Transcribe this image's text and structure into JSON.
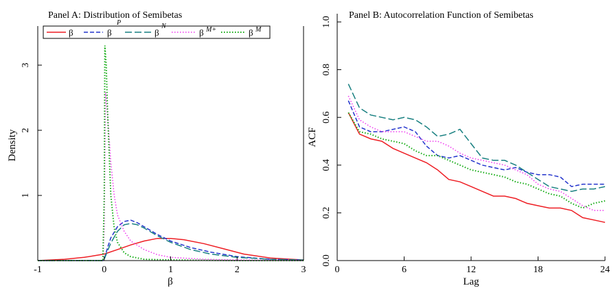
{
  "colors": {
    "beta": "#ee1d23",
    "beta_p": "#2233cc",
    "beta_n": "#177f80",
    "beta_mplus": "#ee33ee",
    "beta_mminus": "#11aa11",
    "axis": "#000000"
  },
  "chart_data": [
    {
      "type": "line",
      "title": "Panel A: Distribution of Semibetas",
      "xlabel": "β",
      "ylabel": "Density",
      "xlim": [
        -1,
        3
      ],
      "ylim": [
        0,
        3.6
      ],
      "x_ticks": [
        -1,
        0,
        1,
        2,
        3
      ],
      "x_tick_labels": [
        "-1",
        "0",
        "1",
        "2",
        "3"
      ],
      "y_ticks": [
        0,
        1,
        2,
        3
      ],
      "y_tick_labels": [
        "",
        "1",
        "2",
        "3"
      ],
      "legend": {
        "position": "top",
        "entries": [
          {
            "base": "β",
            "sup": "",
            "series": "beta"
          },
          {
            "base": "β",
            "sup": "P",
            "series": "beta_p"
          },
          {
            "base": "β",
            "sup": "N",
            "series": "beta_n"
          },
          {
            "base": "β",
            "sup": "M+",
            "series": "beta_mplus"
          },
          {
            "base": "β",
            "sup": "M",
            "series": "beta_mminus"
          }
        ]
      },
      "series": [
        {
          "name": "beta",
          "style": "solid",
          "x": [
            -1.0,
            -0.6,
            -0.3,
            0.0,
            0.2,
            0.4,
            0.6,
            0.8,
            1.0,
            1.2,
            1.5,
            1.8,
            2.1,
            2.5,
            3.0
          ],
          "y": [
            0.0,
            0.02,
            0.05,
            0.1,
            0.17,
            0.24,
            0.3,
            0.34,
            0.34,
            0.32,
            0.26,
            0.18,
            0.1,
            0.04,
            0.01
          ]
        },
        {
          "name": "beta_p",
          "style": "dash",
          "x": [
            -1.0,
            -0.02,
            0.0,
            0.05,
            0.1,
            0.2,
            0.3,
            0.4,
            0.5,
            0.6,
            0.8,
            1.0,
            1.3,
            1.6,
            2.0,
            2.5,
            3.0
          ],
          "y": [
            0.0,
            0.0,
            0.02,
            0.2,
            0.35,
            0.52,
            0.6,
            0.62,
            0.58,
            0.52,
            0.4,
            0.3,
            0.2,
            0.13,
            0.06,
            0.02,
            0.01
          ]
        },
        {
          "name": "beta_n",
          "style": "longdash",
          "x": [
            -1.0,
            -0.02,
            0.0,
            0.05,
            0.1,
            0.2,
            0.3,
            0.4,
            0.5,
            0.6,
            0.8,
            1.0,
            1.3,
            1.6,
            2.0,
            2.5,
            3.0
          ],
          "y": [
            0.0,
            0.0,
            0.02,
            0.15,
            0.27,
            0.45,
            0.55,
            0.57,
            0.55,
            0.5,
            0.38,
            0.28,
            0.17,
            0.1,
            0.05,
            0.02,
            0.01
          ]
        },
        {
          "name": "beta_mplus",
          "style": "dot",
          "x": [
            -1.0,
            -0.02,
            0.0,
            0.02,
            0.05,
            0.1,
            0.15,
            0.2,
            0.3,
            0.4,
            0.6,
            0.8,
            1.0,
            1.5,
            2.0,
            3.0
          ],
          "y": [
            0.0,
            0.0,
            0.5,
            2.58,
            2.25,
            1.5,
            1.0,
            0.7,
            0.45,
            0.3,
            0.17,
            0.09,
            0.05,
            0.02,
            0.01,
            0.0
          ]
        },
        {
          "name": "beta_mminus",
          "style": "dot",
          "x": [
            -1.0,
            -0.02,
            0.0,
            0.01,
            0.03,
            0.05,
            0.08,
            0.1,
            0.15,
            0.2,
            0.3,
            0.4,
            0.6,
            1.0,
            2.0,
            3.0
          ],
          "y": [
            0.0,
            0.0,
            1.0,
            3.3,
            3.0,
            2.3,
            1.5,
            1.0,
            0.5,
            0.28,
            0.12,
            0.06,
            0.02,
            0.01,
            0.0,
            0.0
          ]
        }
      ]
    },
    {
      "type": "line",
      "title": "Panel B: Autocorrelation Function of Semibetas",
      "xlabel": "Lag",
      "ylabel": "ACF",
      "xlim": [
        0,
        24
      ],
      "ylim": [
        0,
        1.0
      ],
      "x_ticks": [
        0,
        6,
        12,
        18,
        24
      ],
      "x_tick_labels": [
        "0",
        "6",
        "12",
        "18",
        "24"
      ],
      "y_ticks": [
        0,
        0.2,
        0.4,
        0.6,
        0.8,
        1.0
      ],
      "y_tick_labels": [
        "0.0",
        "0.2",
        "0.4",
        "0.6",
        "0.8",
        "1.0"
      ],
      "x": [
        1,
        2,
        3,
        4,
        5,
        6,
        7,
        8,
        9,
        10,
        11,
        12,
        13,
        14,
        15,
        16,
        17,
        18,
        19,
        20,
        21,
        22,
        23,
        24
      ],
      "series": [
        {
          "name": "beta",
          "style": "solid",
          "values": [
            0.62,
            0.53,
            0.51,
            0.5,
            0.47,
            0.45,
            0.43,
            0.41,
            0.38,
            0.34,
            0.33,
            0.31,
            0.29,
            0.27,
            0.27,
            0.26,
            0.24,
            0.23,
            0.22,
            0.22,
            0.21,
            0.18,
            0.17,
            0.16
          ]
        },
        {
          "name": "beta_p",
          "style": "dash",
          "values": [
            0.67,
            0.56,
            0.54,
            0.54,
            0.55,
            0.56,
            0.54,
            0.48,
            0.44,
            0.43,
            0.44,
            0.42,
            0.4,
            0.39,
            0.38,
            0.39,
            0.37,
            0.36,
            0.36,
            0.35,
            0.31,
            0.32,
            0.32,
            0.32
          ]
        },
        {
          "name": "beta_n",
          "style": "longdash",
          "values": [
            0.74,
            0.64,
            0.61,
            0.6,
            0.59,
            0.6,
            0.59,
            0.56,
            0.52,
            0.53,
            0.55,
            0.49,
            0.43,
            0.42,
            0.42,
            0.4,
            0.37,
            0.34,
            0.31,
            0.3,
            0.29,
            0.3,
            0.3,
            0.31
          ]
        },
        {
          "name": "beta_mplus",
          "style": "dot",
          "values": [
            0.69,
            0.59,
            0.56,
            0.54,
            0.54,
            0.54,
            0.52,
            0.5,
            0.5,
            0.48,
            0.45,
            0.43,
            0.42,
            0.41,
            0.4,
            0.38,
            0.36,
            0.32,
            0.3,
            0.29,
            0.26,
            0.23,
            0.21,
            0.21
          ]
        },
        {
          "name": "beta_mminus",
          "style": "dot",
          "values": [
            0.62,
            0.54,
            0.53,
            0.51,
            0.5,
            0.49,
            0.46,
            0.44,
            0.44,
            0.42,
            0.4,
            0.38,
            0.37,
            0.36,
            0.35,
            0.33,
            0.32,
            0.3,
            0.28,
            0.27,
            0.24,
            0.22,
            0.24,
            0.25
          ]
        }
      ]
    }
  ]
}
